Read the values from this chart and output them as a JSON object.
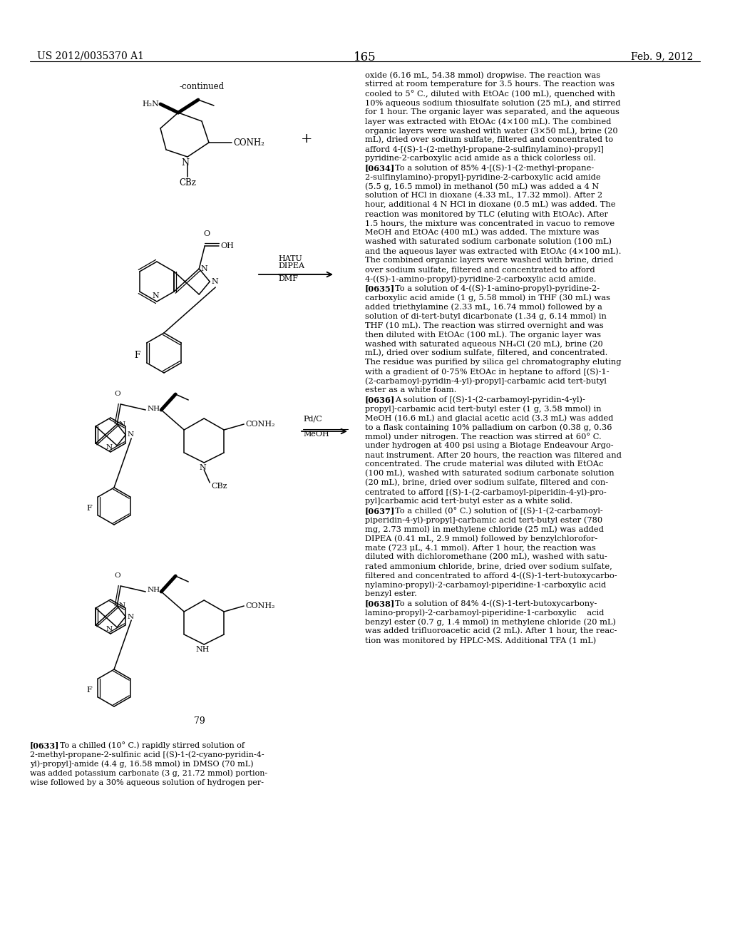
{
  "patent_number": "US 2012/0035370 A1",
  "patent_date": "Feb. 9, 2012",
  "page_number": "165",
  "right_col_text": [
    [
      "bold",
      "oxide (6.16 mL, 54.38 mmol) dropwise. The reaction was"
    ],
    [
      "normal",
      "stirred at room temperature for 3.5 hours. The reaction was"
    ],
    [
      "normal",
      "cooled to 5° C., diluted with EtOAc (100 mL), quenched with"
    ],
    [
      "normal",
      "10% aqueous sodium thiosulfate solution (25 mL), and stirred"
    ],
    [
      "normal",
      "for 1 hour. The organic layer was separated, and the aqueous"
    ],
    [
      "normal",
      "layer was extracted with EtOAc (4×100 mL). The combined"
    ],
    [
      "normal",
      "organic layers were washed with water (3×50 mL), brine (20"
    ],
    [
      "normal",
      "mL), dried over sodium sulfate, filtered and concentrated to"
    ],
    [
      "normal",
      "afford 4-[(S)-1-(2-methyl-propane-2-sulfinylamino)-propyl]"
    ],
    [
      "normal",
      "pyridine-2-carboxylic acid amide as a thick colorless oil."
    ],
    [
      "ref",
      "[0634]",
      "To a solution of 85% 4-[(S)-1-(2-methyl-propane-"
    ],
    [
      "normal",
      "2-sulfinylamino)-propyl]-pyridine-2-carboxylic acid amide"
    ],
    [
      "normal",
      "(5.5 g, 16.5 mmol) in methanol (50 mL) was added a 4 N"
    ],
    [
      "normal",
      "solution of HCl in dioxane (4.33 mL, 17.32 mmol). After 2"
    ],
    [
      "normal",
      "hour, additional 4 N HCl in dioxane (0.5 mL) was added. The"
    ],
    [
      "normal",
      "reaction was monitored by TLC (eluting with EtOAc). After"
    ],
    [
      "normal",
      "1.5 hours, the mixture was concentrated in vacuo to remove"
    ],
    [
      "normal",
      "MeOH and EtOAc (400 mL) was added. The mixture was"
    ],
    [
      "normal",
      "washed with saturated sodium carbonate solution (100 mL)"
    ],
    [
      "normal",
      "and the aqueous layer was extracted with EtOAc (4×100 mL)."
    ],
    [
      "normal",
      "The combined organic layers were washed with brine, dried"
    ],
    [
      "normal",
      "over sodium sulfate, filtered and concentrated to afford"
    ],
    [
      "normal",
      "4-((S)-1-amino-propyl)-pyridine-2-carboxylic acid amide."
    ],
    [
      "ref",
      "[0635]",
      "To a solution of 4-((S)-1-amino-propyl)-pyridine-2-"
    ],
    [
      "normal",
      "carboxylic acid amide (1 g, 5.58 mmol) in THF (30 mL) was"
    ],
    [
      "normal",
      "added triethylamine (2.33 mL, 16.74 mmol) followed by a"
    ],
    [
      "normal",
      "solution of di-tert-butyl dicarbonate (1.34 g, 6.14 mmol) in"
    ],
    [
      "normal",
      "THF (10 mL). The reaction was stirred overnight and was"
    ],
    [
      "normal",
      "then diluted with EtOAc (100 mL). The organic layer was"
    ],
    [
      "normal",
      "washed with saturated aqueous NH₄Cl (20 mL), brine (20"
    ],
    [
      "normal",
      "mL), dried over sodium sulfate, filtered, and concentrated."
    ],
    [
      "normal",
      "The residue was purified by silica gel chromatography eluting"
    ],
    [
      "normal",
      "with a gradient of 0-75% EtOAc in heptane to afford [(S)-1-"
    ],
    [
      "normal",
      "(2-carbamoyl-pyridin-4-yl)-propyl]-carbamic acid tert-butyl"
    ],
    [
      "normal",
      "ester as a white foam."
    ],
    [
      "ref",
      "[0636]",
      "A solution of [(S)-1-(2-carbamoyl-pyridin-4-yl)-"
    ],
    [
      "normal",
      "propyl]-carbamic acid tert-butyl ester (1 g, 3.58 mmol) in"
    ],
    [
      "normal",
      "MeOH (16.6 mL) and glacial acetic acid (3.3 mL) was added"
    ],
    [
      "normal",
      "to a flask containing 10% palladium on carbon (0.38 g, 0.36"
    ],
    [
      "normal",
      "mmol) under nitrogen. The reaction was stirred at 60° C."
    ],
    [
      "normal",
      "under hydrogen at 400 psi using a Biotage Endeavour Argo-"
    ],
    [
      "normal",
      "naut instrument. After 20 hours, the reaction was filtered and"
    ],
    [
      "normal",
      "concentrated. The crude material was diluted with EtOAc"
    ],
    [
      "normal",
      "(100 mL), washed with saturated sodium carbonate solution"
    ],
    [
      "normal",
      "(20 mL), brine, dried over sodium sulfate, filtered and con-"
    ],
    [
      "normal",
      "centrated to afford [(S)-1-(2-carbamoyl-piperidin-4-yl)-pro-"
    ],
    [
      "normal",
      "pyl]carbamic acid tert-butyl ester as a white solid."
    ],
    [
      "ref",
      "[0637]",
      "To a chilled (0° C.) solution of [(S)-1-(2-carbamoyl-"
    ],
    [
      "normal",
      "piperidin-4-yl)-propyl]-carbamic acid tert-butyl ester (780"
    ],
    [
      "normal",
      "mg, 2.73 mmol) in methylene chloride (25 mL) was added"
    ],
    [
      "normal",
      "DIPEA (0.41 mL, 2.9 mmol) followed by benzylchlorofor-"
    ],
    [
      "normal",
      "mate (723 μL, 4.1 mmol). After 1 hour, the reaction was"
    ],
    [
      "normal",
      "diluted with dichloromethane (200 mL), washed with satu-"
    ],
    [
      "normal",
      "rated ammonium chloride, brine, dried over sodium sulfate,"
    ],
    [
      "normal",
      "filtered and concentrated to afford 4-((S)-1-tert-butoxycarbo-"
    ],
    [
      "normal",
      "nylamino-propyl)-2-carbamoyl-piperidine-1-carboxylic acid"
    ],
    [
      "normal",
      "benzyl ester."
    ],
    [
      "ref",
      "[0638]",
      "To a solution of 84% 4-((S)-1-tert-butoxycarbony-"
    ],
    [
      "normal",
      "lamino-propyl)-2-carbamoyl-piperidine-1-carboxylic    acid"
    ],
    [
      "normal",
      "benzyl ester (0.7 g, 1.4 mmol) in methylene chloride (20 mL)"
    ],
    [
      "normal",
      "was added trifluoroacetic acid (2 mL). After 1 hour, the reac-"
    ],
    [
      "normal",
      "tion was monitored by HPLC-MS. Additional TFA (1 mL)"
    ]
  ],
  "left_bottom_text": [
    [
      "ref",
      "[0633]",
      "To a chilled (10° C.) rapidly stirred solution of"
    ],
    [
      "normal",
      "2-methyl-propane-2-sulfinic acid [(S)-1-(2-cyano-pyridin-4-"
    ],
    [
      "normal",
      "yl)-propyl]-amide (4.4 g, 16.58 mmol) in DMSO (70 mL)"
    ],
    [
      "normal",
      "was added potassium carbonate (3 g, 21.72 mmol) portion-"
    ],
    [
      "normal",
      "wise followed by a 30% aqueous solution of hydrogen per-"
    ]
  ]
}
